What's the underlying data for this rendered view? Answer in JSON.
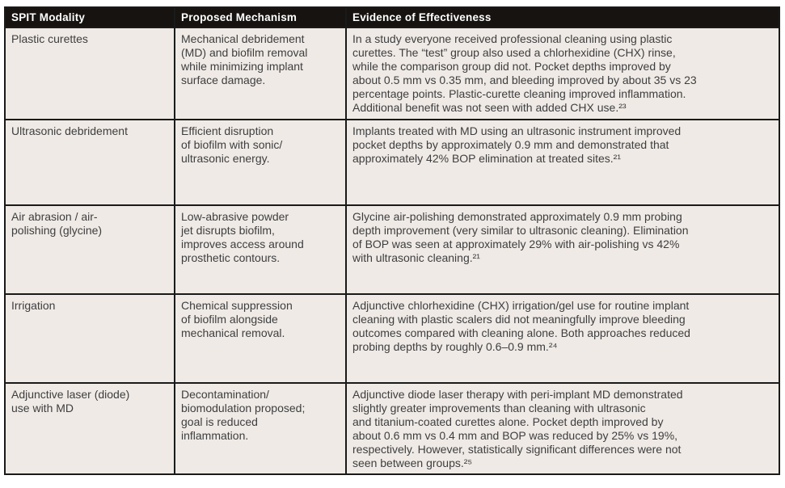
{
  "colors": {
    "header_background": "#171310",
    "header_text": "#ffffff",
    "cell_background": "#efeae5",
    "body_text": "#3e3e40",
    "border": "#1a1a1a",
    "page_background": "#ffffff"
  },
  "table": {
    "columns": [
      {
        "label": "SPIT Modality"
      },
      {
        "label": "Proposed Mechanism"
      },
      {
        "label": "Evidence of Effectiveness"
      }
    ],
    "rows": [
      {
        "modality": "Plastic curettes",
        "mechanism": "Mechanical debridement\n(MD) and biofilm removal\nwhile minimizing implant\nsurface damage.",
        "evidence": "In a study everyone received professional cleaning using plastic\ncurettes. The “test” group also used a chlorhexidine (CHX) rinse,\nwhile the comparison group did not. Pocket depths improved by\nabout 0.5 mm vs 0.35 mm, and bleeding improved by about 35 vs 23\npercentage points. Plastic-curette cleaning improved inflammation.\nAdditional benefit was not seen with added CHX use.²³"
      },
      {
        "modality": "Ultrasonic debridement",
        "mechanism": "Efficient disruption\nof biofilm with sonic/\nultrasonic energy.",
        "evidence": "Implants treated with MD using an ultrasonic instrument improved\npocket depths by approximately 0.9 mm and demonstrated that\napproximately 42% BOP elimination at treated sites.²¹"
      },
      {
        "modality": "Air abrasion / air-\npolishing (glycine)",
        "mechanism": "Low-abrasive powder\njet disrupts biofilm,\nimproves access around\nprosthetic contours.",
        "evidence": "Glycine air-polishing demonstrated approximately 0.9 mm probing\ndepth improvement (very similar to ultrasonic cleaning). Elimination\nof BOP was seen at approximately 29% with air-polishing vs 42%\nwith ultrasonic cleaning.²¹"
      },
      {
        "modality": "Irrigation",
        "mechanism": "Chemical suppression\nof biofilm alongside\nmechanical removal.",
        "evidence": "Adjunctive chlorhexidine (CHX) irrigation/gel use for routine implant\ncleaning with plastic scalers did not meaningfully improve bleeding\noutcomes compared with cleaning alone. Both approaches reduced\nprobing depths by roughly 0.6–0.9 mm.²⁴"
      },
      {
        "modality": "Adjunctive laser (diode)\nuse with MD",
        "mechanism": "Decontamination/\nbiomodulation proposed;\ngoal is reduced\ninflammation.",
        "evidence": "Adjunctive diode laser therapy with peri-implant MD demonstrated\nslightly greater improvements than cleaning with ultrasonic\nand titanium-coated curettes alone. Pocket depth improved by\nabout 0.6 mm vs 0.4 mm and BOP was reduced by 25% vs 19%,\nrespectively. However, statistically significant differences were not\nseen between groups.²⁵"
      }
    ]
  }
}
